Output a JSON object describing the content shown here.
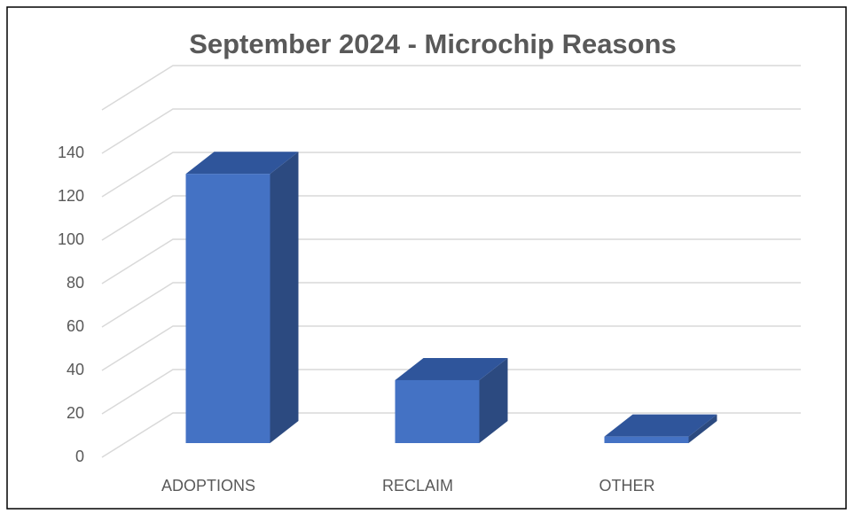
{
  "chart_data": {
    "type": "bar3d",
    "title": "September 2024 - Microchip Reasons",
    "categories": [
      "ADOPTIONS",
      "RECLAIM",
      "OTHER"
    ],
    "values": [
      124,
      29,
      3
    ],
    "color": "#4472c4",
    "ylim": [
      0,
      160
    ],
    "yticks": [
      0,
      20,
      40,
      60,
      80,
      100,
      120,
      140
    ],
    "grid": true
  }
}
